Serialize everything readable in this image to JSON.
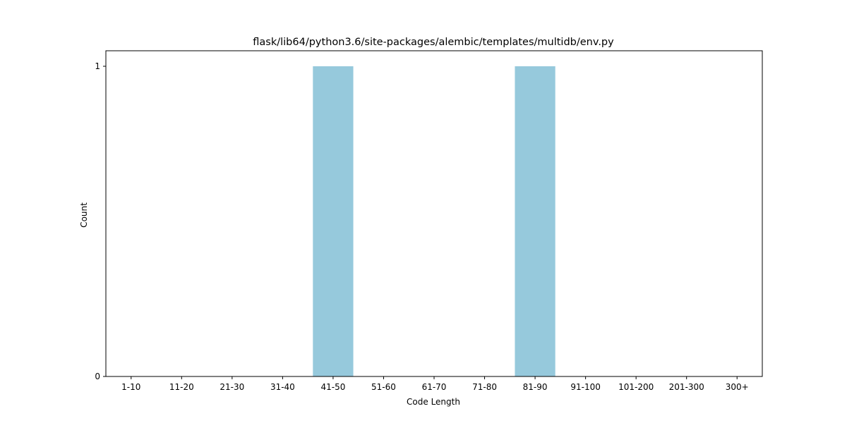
{
  "chart_data": {
    "type": "bar",
    "title": "flask/lib64/python3.6/site-packages/alembic/templates/multidb/env.py",
    "xlabel": "Code Length",
    "ylabel": "Count",
    "categories": [
      "1-10",
      "11-20",
      "21-30",
      "31-40",
      "41-50",
      "51-60",
      "61-70",
      "71-80",
      "81-90",
      "91-100",
      "101-200",
      "201-300",
      "300+"
    ],
    "values": [
      0,
      0,
      0,
      0,
      1,
      0,
      0,
      0,
      1,
      0,
      0,
      0,
      0
    ],
    "ylim": [
      0,
      1.05
    ],
    "yticks": [
      0,
      1
    ],
    "bar_color": "#96c9dc",
    "grid": false,
    "legend": "none"
  }
}
